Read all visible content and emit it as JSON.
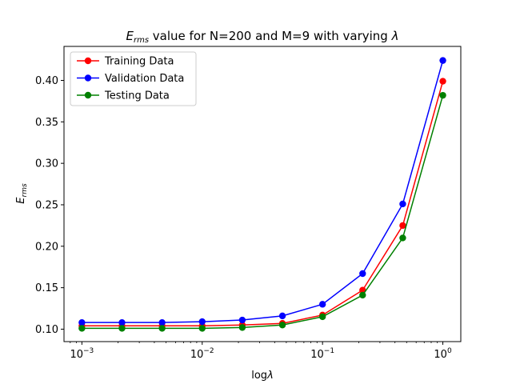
{
  "chart_data": {
    "type": "line",
    "title_prefix": "E",
    "title_sub": "rms",
    "title_rest": " value for N=200 and M=9 with varying ",
    "title_lambda": "λ",
    "xlabel_prefix": "log",
    "xlabel_lambda": "λ",
    "ylabel_prefix": "E",
    "ylabel_sub": "rms",
    "xscale": "log",
    "xlim": [
      0.00071,
      1.41
    ],
    "ylim": [
      0.085,
      0.441
    ],
    "grid": false,
    "legend_position": "upper-left",
    "x": [
      0.001,
      0.002154,
      0.004642,
      0.01,
      0.02154,
      0.04642,
      0.1,
      0.2154,
      0.4642,
      1.0
    ],
    "xticks": [
      {
        "value": 0.001,
        "base": "10",
        "exp": "−3"
      },
      {
        "value": 0.01,
        "base": "10",
        "exp": "−2"
      },
      {
        "value": 0.1,
        "base": "10",
        "exp": "−1"
      },
      {
        "value": 1.0,
        "base": "10",
        "exp": "0"
      }
    ],
    "yticks": [
      {
        "value": 0.1,
        "label": "0.10"
      },
      {
        "value": 0.15,
        "label": "0.15"
      },
      {
        "value": 0.2,
        "label": "0.20"
      },
      {
        "value": 0.25,
        "label": "0.25"
      },
      {
        "value": 0.3,
        "label": "0.30"
      },
      {
        "value": 0.35,
        "label": "0.35"
      },
      {
        "value": 0.4,
        "label": "0.40"
      }
    ],
    "series": [
      {
        "name": "Training Data",
        "color": "#ff0000",
        "values": [
          0.104,
          0.104,
          0.104,
          0.104,
          0.105,
          0.107,
          0.117,
          0.147,
          0.225,
          0.399
        ]
      },
      {
        "name": "Validation Data",
        "color": "#0000ff",
        "values": [
          0.108,
          0.108,
          0.108,
          0.109,
          0.111,
          0.116,
          0.13,
          0.167,
          0.251,
          0.424
        ]
      },
      {
        "name": "Testing Data",
        "color": "#008000",
        "values": [
          0.101,
          0.101,
          0.101,
          0.101,
          0.102,
          0.105,
          0.115,
          0.141,
          0.21,
          0.382
        ]
      }
    ]
  }
}
